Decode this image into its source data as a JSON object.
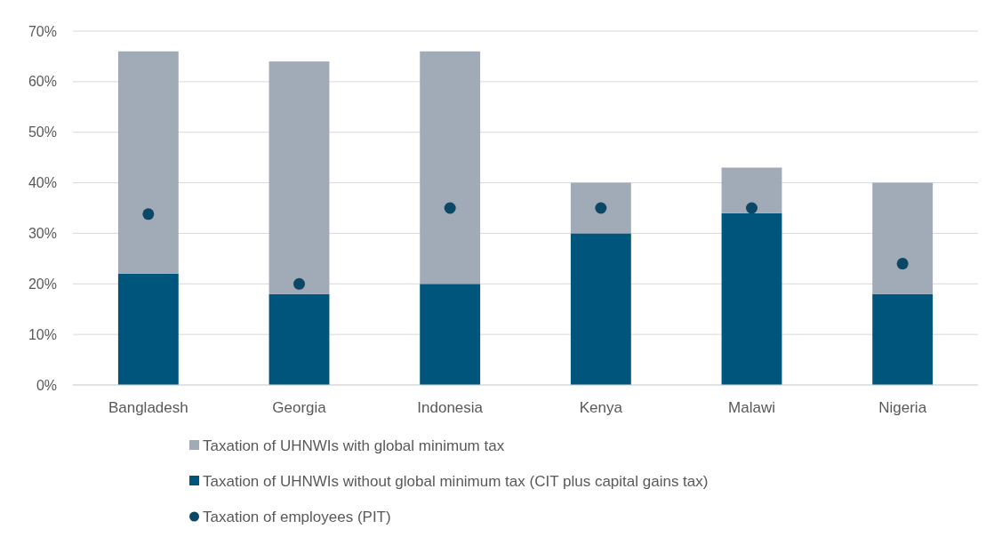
{
  "chart_data": {
    "type": "bar",
    "stacked": true,
    "categories": [
      "Bangladesh",
      "Georgia",
      "Indonesia",
      "Kenya",
      "Malawi",
      "Nigeria"
    ],
    "series": [
      {
        "name": "Taxation of UHNWIs without global minimum tax (CIT plus capital gains tax)",
        "color": "#00557c",
        "values": [
          22,
          18,
          20,
          30,
          34,
          18
        ]
      },
      {
        "name": "Taxation of UHNWIs with global minimum tax",
        "color": "#a1abb8",
        "values": [
          44,
          46,
          46,
          10,
          9,
          22
        ]
      },
      {
        "name": "Taxation of employees (PIT)",
        "type": "scatter",
        "color": "#0a4866",
        "marker": "circle",
        "x": [
          "Bangladesh",
          "Georgia",
          "Indonesia",
          "Kenya",
          "Malawi",
          "Nigeria"
        ],
        "values": [
          33.8,
          20,
          35,
          35,
          35,
          24
        ]
      }
    ],
    "ylim": [
      0,
      70
    ],
    "yticks": [
      {
        "value": 0,
        "label": "0%"
      },
      {
        "value": 10,
        "label": "10%"
      },
      {
        "value": 20,
        "label": "20%"
      },
      {
        "value": 30,
        "label": "30%"
      },
      {
        "value": 40,
        "label": "40%"
      },
      {
        "value": 50,
        "label": "50%"
      },
      {
        "value": 60,
        "label": "60%"
      },
      {
        "value": 70,
        "label": "70%"
      }
    ],
    "grid": "y",
    "legend": "bottom"
  }
}
